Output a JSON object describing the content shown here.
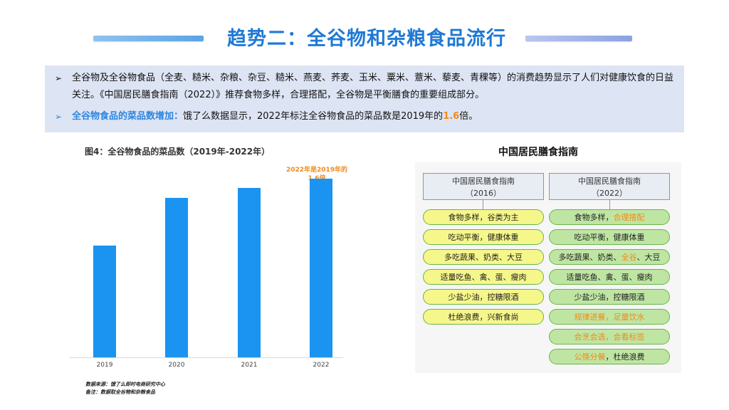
{
  "header": {
    "title": "趋势二：全谷物和杂粮食品流行"
  },
  "summary": {
    "bullet1": "全谷物及全谷物食品（全麦、糙米、杂粮、杂豆、糙米、燕麦、荞麦、玉米、粟米、薏米、藜麦、青稞等）的消费趋势显示了人们对健康饮食的日益关注。《中国居民膳食指南（2022）》推荐食物多样，合理搭配，全谷物是平衡膳食的重要组成部分。",
    "bullet2_label": "全谷物食品的菜品数增加：",
    "bullet2_text": "饿了么数据显示，2022年标注全谷物食品的菜品数是2019年的",
    "bullet2_value": "1.6",
    "bullet2_suffix": "倍。",
    "bullet_mark": "➢"
  },
  "chart_data": {
    "type": "bar",
    "title": "图4：全谷物食品的菜品数（2019年-2022年）",
    "categories": [
      "2019",
      "2020",
      "2021",
      "2022"
    ],
    "values": [
      1.0,
      1.43,
      1.52,
      1.6
    ],
    "ylim": [
      0,
      1.8
    ],
    "annotation": "2022年是2019年的1.6倍",
    "color": "#1b93f0",
    "source_note": "数据来源：饿了么即时电商研究中心",
    "remark_note": "备注：数据取全谷物和杂粮食品"
  },
  "guide": {
    "heading": "中国居民膳食指南",
    "col2016": {
      "title": "中国居民膳食指南",
      "year": "（2016）"
    },
    "col2022": {
      "title": "中国居民膳食指南",
      "year": "（2022）"
    },
    "items2016": [
      "食物多样，谷类为主",
      "吃动平衡，健康体重",
      "多吃蔬果、奶类、大豆",
      "适量吃鱼、禽、蛋、瘦肉",
      "少盐少油，控糖限酒",
      "杜绝浪费，兴新食尚"
    ],
    "items2022": {
      "r1a": "食物多样，",
      "r1b": "合理搭配",
      "r2": "吃动平衡，健康体重",
      "r3a": "多吃蔬果、奶类、",
      "r3b": "全谷",
      "r3c": "、大豆",
      "r4": "适量吃鱼、禽、蛋、瘦肉",
      "r5": "少盐少油，控糖限酒",
      "r6": "规律进餐，足量饮水",
      "r7": "会烹会选，会看标签",
      "r8a": "公筷分餐",
      "r8b": "，杜绝浪费"
    },
    "colors": {
      "yellow": "#f6f78a",
      "green": "#bfe5a3",
      "highlight": "#f08a1a"
    }
  }
}
